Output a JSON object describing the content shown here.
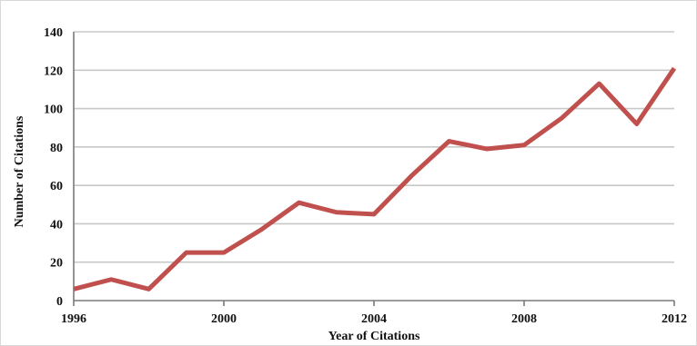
{
  "colors": {
    "series_line": "#c0504d",
    "grid": "#c8c8c8",
    "axis": "#7a7a7a",
    "text": "#111111"
  },
  "chart_data": {
    "type": "line",
    "title": "",
    "xlabel": "Year of Citations",
    "ylabel": "Number of Citations",
    "x": [
      1996,
      1997,
      1998,
      1999,
      2000,
      2001,
      2002,
      2003,
      2004,
      2005,
      2006,
      2007,
      2008,
      2009,
      2010,
      2011,
      2012
    ],
    "series": [
      {
        "values": [
          6,
          11,
          6,
          25,
          25,
          37,
          51,
          46,
          45,
          65,
          83,
          79,
          81,
          95,
          113,
          92,
          121
        ]
      }
    ],
    "xlim": [
      1996,
      2012
    ],
    "ylim": [
      0,
      140
    ],
    "x_ticks": [
      1996,
      2000,
      2004,
      2008,
      2012
    ],
    "y_ticks": [
      0,
      20,
      40,
      60,
      80,
      100,
      120,
      140
    ],
    "grid": "horizontal",
    "legend": "none"
  }
}
